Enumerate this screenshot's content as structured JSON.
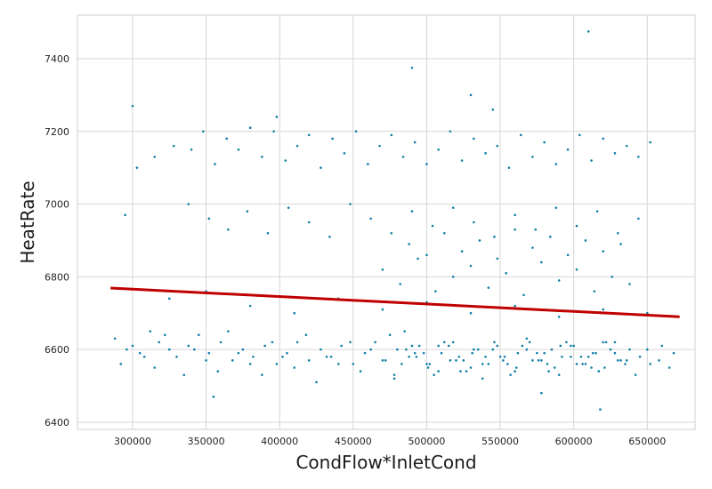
{
  "chart_data": {
    "type": "scatter",
    "title": "",
    "xlabel": "CondFlow*InletCond",
    "ylabel": "HeatRate",
    "xlim": [
      262500,
      682500
    ],
    "ylim": [
      6380,
      7520
    ],
    "x_ticks": [
      300000,
      350000,
      400000,
      450000,
      500000,
      550000,
      600000,
      650000
    ],
    "y_ticks": [
      6400,
      6600,
      6800,
      7000,
      7200,
      7400
    ],
    "grid": true,
    "point_color": "#0e7fa6",
    "line_color": "#c00000",
    "series": [
      {
        "kind": "points",
        "x": [
          288000,
          296000,
          305000,
          312000,
          318000,
          325000,
          330000,
          338000,
          345000,
          352000,
          360000,
          368000,
          375000,
          382000,
          390000,
          398000,
          405000,
          412000,
          420000,
          428000,
          435000,
          442000,
          450000,
          458000,
          465000,
          472000,
          480000,
          488000,
          495000,
          502000,
          510000,
          518000,
          525000,
          532000,
          540000,
          548000,
          555000,
          562000,
          570000,
          578000,
          585000,
          592000,
          600000,
          608000,
          615000,
          622000,
          630000,
          638000,
          645000,
          652000,
          660000,
          668000,
          292000,
          300000,
          308000,
          315000,
          322000,
          335000,
          342000,
          350000,
          358000,
          365000,
          372000,
          380000,
          388000,
          395000,
          402000,
          410000,
          418000,
          425000,
          432000,
          440000,
          448000,
          455000,
          462000,
          470000,
          478000,
          485000,
          492000,
          500000,
          508000,
          515000,
          522000,
          530000,
          538000,
          545000,
          552000,
          560000,
          568000,
          575000,
          582000,
          590000,
          598000,
          605000,
          612000,
          620000,
          628000,
          635000,
          642000,
          650000,
          658000,
          665000,
          475000,
          483000,
          490000,
          498000,
          505000,
          512000,
          520000,
          527000,
          535000,
          542000,
          550000,
          557000,
          565000,
          572000,
          580000,
          587000,
          595000,
          602000,
          610000,
          617000,
          625000,
          632000,
          478000,
          486000,
          493000,
          501000,
          508000,
          516000,
          523000,
          531000,
          538000,
          546000,
          553000,
          561000,
          568000,
          576000,
          583000,
          591000,
          598000,
          606000,
          613000,
          621000,
          628000,
          636000,
          303000,
          315000,
          328000,
          340000,
          348000,
          356000,
          364000,
          372000,
          380000,
          388000,
          396000,
          404000,
          412000,
          420000,
          428000,
          436000,
          444000,
          452000,
          460000,
          468000,
          476000,
          484000,
          492000,
          500000,
          508000,
          516000,
          524000,
          532000,
          540000,
          548000,
          556000,
          564000,
          572000,
          580000,
          588000,
          596000,
          604000,
          612000,
          620000,
          628000,
          636000,
          644000,
          652000,
          295000,
          338000,
          352000,
          365000,
          378000,
          392000,
          406000,
          420000,
          434000,
          448000,
          462000,
          476000,
          490000,
          504000,
          518000,
          532000,
          546000,
          560000,
          574000,
          588000,
          602000,
          616000,
          630000,
          644000,
          470000,
          482000,
          494000,
          506000,
          518000,
          530000,
          542000,
          554000,
          566000,
          578000,
          590000,
          602000,
          614000,
          626000,
          638000,
          488000,
          500000,
          512000,
          524000,
          536000,
          548000,
          560000,
          572000,
          584000,
          596000,
          608000,
          620000,
          632000,
          325000,
          350000,
          380000,
          410000,
          440000,
          470000,
          500000,
          530000,
          560000,
          590000,
          620000,
          650000,
          490000,
          610000,
          530000,
          545000,
          355000,
          300000,
          398000,
          618000,
          578000
        ],
        "y": [
          6630,
          6600,
          6590,
          6650,
          6620,
          6600,
          6580,
          6610,
          6640,
          6590,
          6620,
          6570,
          6600,
          6580,
          6610,
          6560,
          6590,
          6620,
          6570,
          6600,
          6580,
          6610,
          6560,
          6590,
          6620,
          6570,
          6600,
          6580,
          6610,
          6560,
          6590,
          6620,
          6570,
          6600,
          6580,
          6610,
          6560,
          6590,
          6620,
          6570,
          6600,
          6580,
          6610,
          6560,
          6590,
          6620,
          6570,
          6600,
          6580,
          6560,
          6610,
          6590,
          6560,
          6610,
          6580,
          6550,
          6640,
          6530,
          6600,
          6570,
          6540,
          6650,
          6590,
          6560,
          6530,
          6620,
          6580,
          6550,
          6640,
          6510,
          6580,
          6560,
          6620,
          6540,
          6600,
          6570,
          6530,
          6650,
          6590,
          6560,
          6540,
          6610,
          6580,
          6550,
          6520,
          6600,
          6570,
          6540,
          6630,
          6590,
          6560,
          6530,
          6610,
          6580,
          6550,
          6620,
          6590,
          6560,
          6530,
          6600,
          6570,
          6550,
          6640,
          6560,
          6610,
          6590,
          6530,
          6620,
          6570,
          6540,
          6600,
          6560,
          6580,
          6530,
          6610,
          6570,
          6590,
          6550,
          6620,
          6560,
          6580,
          6540,
          6600,
          6570,
          6520,
          6600,
          6580,
          6550,
          6610,
          6570,
          6540,
          6590,
          6560,
          6620,
          6580,
          6550,
          6600,
          6570,
          6540,
          6610,
          6580,
          6560,
          6590,
          6550,
          6620,
          6570,
          7100,
          7130,
          7160,
          7150,
          7200,
          7110,
          7180,
          7150,
          7210,
          7130,
          7200,
          7120,
          7160,
          7190,
          7100,
          7180,
          7140,
          7200,
          7110,
          7160,
          7190,
          7130,
          7170,
          7110,
          7150,
          7200,
          7120,
          7180,
          7140,
          7160,
          7100,
          7190,
          7130,
          7170,
          7110,
          7150,
          7190,
          7120,
          7180,
          7140,
          7160,
          7130,
          7170,
          6970,
          7000,
          6960,
          6930,
          6980,
          6920,
          6990,
          6950,
          6910,
          7000,
          6960,
          6920,
          6980,
          6940,
          6990,
          6950,
          6910,
          6970,
          6930,
          6990,
          6940,
          6980,
          6920,
          6960,
          6820,
          6780,
          6850,
          6760,
          6800,
          6830,
          6770,
          6810,
          6750,
          6840,
          6790,
          6820,
          6760,
          6800,
          6780,
          6890,
          6860,
          6920,
          6870,
          6900,
          6850,
          6930,
          6880,
          6910,
          6860,
          6900,
          6870,
          6890,
          6740,
          6760,
          6720,
          6700,
          6740,
          6710,
          6730,
          6700,
          6720,
          6690,
          6710,
          6700,
          7375,
          7475,
          7300,
          7260,
          6470,
          7270,
          7240,
          6435,
          6480
        ]
      },
      {
        "kind": "line",
        "x": [
          285000,
          672000
        ],
        "y": [
          6769,
          6690
        ]
      }
    ]
  }
}
